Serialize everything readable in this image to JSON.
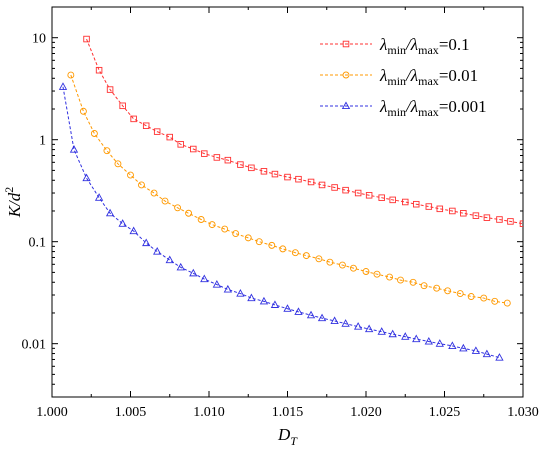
{
  "chart_data": {
    "type": "line",
    "title": "",
    "xlabel": "D",
    "xlabel_sub": "T",
    "ylabel": "K/d",
    "ylabel_sup": "2",
    "xlim": [
      1.0,
      1.03
    ],
    "ylim": [
      0.003,
      20
    ],
    "yscale": "log",
    "grid": false,
    "legend_position": "top-right",
    "x_ticks": [
      1.0,
      1.005,
      1.01,
      1.015,
      1.02,
      1.025,
      1.03
    ],
    "x_tick_labels": [
      "1.000",
      "1.005",
      "1.010",
      "1.015",
      "1.020",
      "1.025",
      "1.030"
    ],
    "y_ticks": [
      0.01,
      0.1,
      1,
      10
    ],
    "y_tick_labels": [
      "0.01",
      "0.1",
      "1",
      "10"
    ],
    "series": [
      {
        "name": "λmin/λmax=0.1",
        "label_parts": [
          "λ",
          "min",
          "/λ",
          "max",
          "=0.1"
        ],
        "color": "#ff3030",
        "marker": "square",
        "x": [
          1.0022,
          1.003,
          1.0037,
          1.0045,
          1.0052,
          1.006,
          1.0067,
          1.0075,
          1.0082,
          1.009,
          1.0097,
          1.0105,
          1.0112,
          1.012,
          1.0127,
          1.0135,
          1.0142,
          1.015,
          1.0157,
          1.0165,
          1.0172,
          1.018,
          1.0187,
          1.0195,
          1.0202,
          1.021,
          1.0217,
          1.0225,
          1.0232,
          1.024,
          1.0247,
          1.0255,
          1.0262,
          1.027,
          1.0277,
          1.0285,
          1.0292,
          1.03
        ],
        "y": [
          9.7,
          4.8,
          3.1,
          2.15,
          1.6,
          1.37,
          1.2,
          1.06,
          0.9,
          0.81,
          0.73,
          0.67,
          0.63,
          0.57,
          0.53,
          0.49,
          0.46,
          0.43,
          0.41,
          0.385,
          0.36,
          0.34,
          0.32,
          0.3,
          0.285,
          0.27,
          0.257,
          0.245,
          0.233,
          0.221,
          0.21,
          0.2,
          0.19,
          0.18,
          0.172,
          0.165,
          0.158,
          0.15
        ]
      },
      {
        "name": "λmin/λmax=0.01",
        "label_parts": [
          "λ",
          "min",
          "/λ",
          "max",
          "=0.01"
        ],
        "color": "#ff9900",
        "marker": "circle",
        "x": [
          1.0012,
          1.002,
          1.0027,
          1.0035,
          1.0042,
          1.005,
          1.0057,
          1.0065,
          1.0072,
          1.008,
          1.0087,
          1.0095,
          1.0102,
          1.011,
          1.0117,
          1.0125,
          1.0132,
          1.014,
          1.0147,
          1.0155,
          1.0162,
          1.017,
          1.0177,
          1.0185,
          1.0192,
          1.02,
          1.0207,
          1.0215,
          1.0222,
          1.023,
          1.0237,
          1.0245,
          1.0252,
          1.026,
          1.0267,
          1.0275,
          1.0282,
          1.029
        ],
        "y": [
          4.3,
          1.9,
          1.15,
          0.78,
          0.58,
          0.45,
          0.36,
          0.3,
          0.25,
          0.215,
          0.19,
          0.165,
          0.147,
          0.133,
          0.12,
          0.109,
          0.1,
          0.092,
          0.085,
          0.078,
          0.073,
          0.068,
          0.063,
          0.059,
          0.055,
          0.051,
          0.048,
          0.045,
          0.042,
          0.04,
          0.037,
          0.035,
          0.033,
          0.031,
          0.029,
          0.028,
          0.026,
          0.025
        ]
      },
      {
        "name": "λmin/λmax=0.001",
        "label_parts": [
          "λ",
          "min",
          "/λ",
          "max",
          "=0.001"
        ],
        "color": "#3030e0",
        "marker": "triangle",
        "x": [
          1.0007,
          1.0014,
          1.0022,
          1.003,
          1.0037,
          1.0045,
          1.0052,
          1.006,
          1.0067,
          1.0075,
          1.0082,
          1.009,
          1.0097,
          1.0105,
          1.0112,
          1.012,
          1.0127,
          1.0135,
          1.0142,
          1.015,
          1.0157,
          1.0165,
          1.0172,
          1.018,
          1.0187,
          1.0195,
          1.0202,
          1.021,
          1.0217,
          1.0225,
          1.0232,
          1.024,
          1.0247,
          1.0255,
          1.0262,
          1.027,
          1.0277,
          1.0285
        ],
        "y": [
          3.3,
          0.8,
          0.42,
          0.27,
          0.19,
          0.15,
          0.127,
          0.097,
          0.08,
          0.066,
          0.056,
          0.049,
          0.043,
          0.038,
          0.034,
          0.031,
          0.028,
          0.026,
          0.024,
          0.022,
          0.0205,
          0.019,
          0.0178,
          0.0167,
          0.0157,
          0.0147,
          0.0139,
          0.0131,
          0.0124,
          0.0117,
          0.0111,
          0.0105,
          0.01,
          0.0095,
          0.009,
          0.0085,
          0.0079,
          0.0073
        ]
      }
    ]
  }
}
